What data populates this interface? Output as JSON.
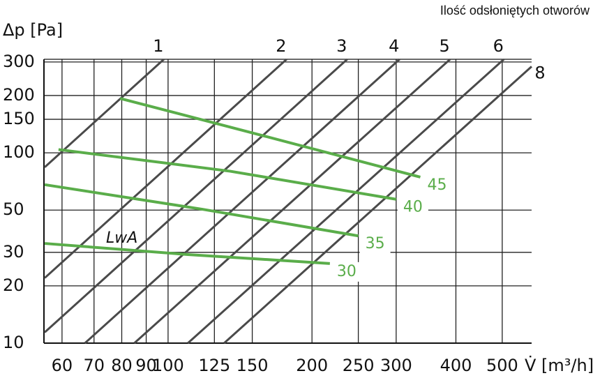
{
  "chart_data": {
    "type": "line",
    "title": "Ilość odsłoniętych otworów",
    "y_label": "Δp [Pa]",
    "x_label": "V̇ [m³/h]",
    "annotation": "LwA",
    "log_x": true,
    "log_y": true,
    "grid": true,
    "xlim": [
      55,
      576
    ],
    "ylim": [
      10,
      310
    ],
    "xticks": [
      60,
      70,
      80,
      90,
      100,
      125,
      150,
      200,
      250,
      300,
      400,
      500
    ],
    "yticks": [
      10,
      20,
      30,
      50,
      100,
      150,
      200,
      300
    ],
    "series": [
      {
        "name": "1",
        "color": "#4a4a4a",
        "x": [
          55.2,
          98
        ],
        "values": [
          84,
          310
        ]
      },
      {
        "name": "2",
        "color": "#4a4a4a",
        "x": [
          55.2,
          177
        ],
        "values": [
          22,
          310
        ]
      },
      {
        "name": "3",
        "color": "#4a4a4a",
        "x": [
          55.2,
          237
        ],
        "values": [
          11.4,
          310
        ]
      },
      {
        "name": "4",
        "color": "#4a4a4a",
        "x": [
          67,
          305
        ],
        "values": [
          10,
          310
        ]
      },
      {
        "name": "5",
        "color": "#4a4a4a",
        "x": [
          85,
          389
        ],
        "values": [
          10,
          310
        ]
      },
      {
        "name": "6",
        "color": "#4a4a4a",
        "x": [
          110,
          504
        ],
        "values": [
          10,
          310
        ]
      },
      {
        "name": "8",
        "color": "#4a4a4a",
        "x": [
          131,
          576
        ],
        "values": [
          10,
          284
        ]
      }
    ],
    "noise_series": [
      {
        "name": "45",
        "color": "#5aad4a",
        "x": [
          79.4,
          160,
          337
        ],
        "values": [
          193,
          122,
          74.5
        ]
      },
      {
        "name": "40",
        "color": "#5aad4a",
        "x": [
          59,
          135,
          300
        ],
        "values": [
          104,
          80,
          57
        ]
      },
      {
        "name": "35",
        "color": "#5aad4a",
        "x": [
          55.2,
          118,
          250
        ],
        "values": [
          68,
          50.5,
          36.6
        ]
      },
      {
        "name": "30",
        "color": "#5aad4a",
        "x": [
          55.2,
          110,
          218
        ],
        "values": [
          33.4,
          29.2,
          26.2
        ]
      }
    ]
  }
}
